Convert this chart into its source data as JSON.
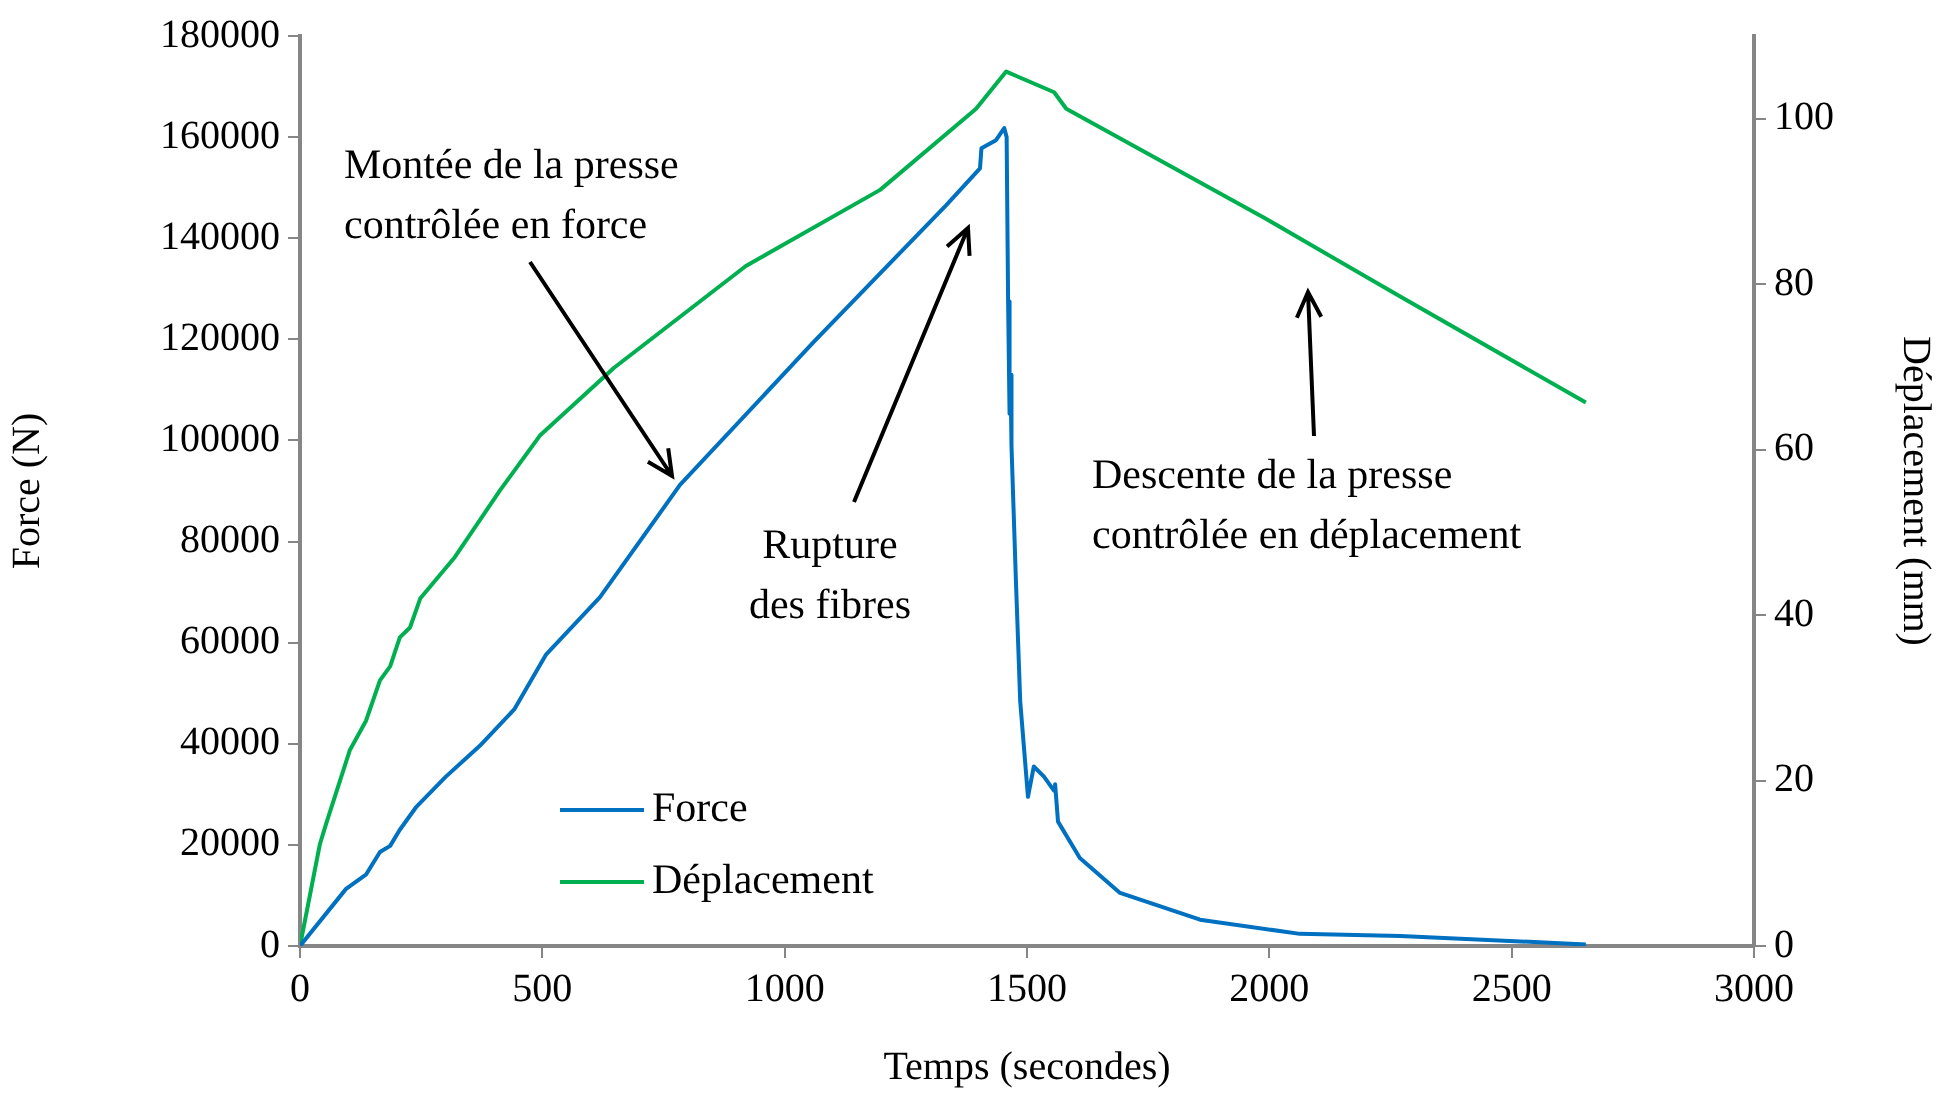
{
  "chart_data": {
    "type": "line",
    "xlabel": "Temps (secondes)",
    "ylabel": "Force (N)",
    "y2label": "Déplacement (mm)",
    "xlim": [
      0,
      3000
    ],
    "xticks": [
      0,
      500,
      1000,
      1500,
      2000,
      2500,
      3000
    ],
    "ylim": [
      0,
      180000
    ],
    "yticks": [
      0,
      20000,
      40000,
      60000,
      80000,
      100000,
      120000,
      140000,
      160000,
      180000
    ],
    "y2lim": [
      0,
      110
    ],
    "y2ticks": [
      0,
      20,
      40,
      60,
      80,
      100
    ],
    "grid": false,
    "legend": "bottom left",
    "marker": "none",
    "line_style": "solid",
    "series": [
      {
        "name": "Force",
        "color": "#0070c0",
        "x": [
          0,
          95,
          136,
          165,
          186,
          206,
          239,
          301,
          371,
          442,
          508,
          619,
          784,
          1060,
          1333,
          1403,
          1406,
          1436,
          1453,
          1458,
          1461,
          1464,
          1466,
          1468,
          1477,
          1486,
          1502,
          1514,
          1535,
          1556,
          1558,
          1564,
          1609,
          1692,
          1857,
          2063,
          2270,
          2653
        ],
        "values": [
          0,
          11300,
          14100,
          18600,
          19800,
          23000,
          27400,
          33500,
          39600,
          46800,
          57700,
          69000,
          91200,
          119500,
          146500,
          153800,
          157800,
          159400,
          161800,
          160000,
          127500,
          105300,
          113000,
          98900,
          72600,
          48400,
          29500,
          35500,
          33500,
          30700,
          32000,
          24600,
          17400,
          10500,
          5200,
          2400,
          2000,
          300
        ]
      },
      {
        "name": "Déplacement",
        "color": "#00b050",
        "axis": "y2",
        "x": [
          0,
          41,
          54,
          103,
          136,
          165,
          186,
          206,
          227,
          248,
          318,
          413,
          495,
          648,
          920,
          1197,
          1395,
          1457,
          1556,
          1581,
          1993,
          2270,
          2653
        ],
        "values": [
          0,
          12.3,
          14.8,
          23.7,
          27.2,
          32.1,
          33.8,
          37.3,
          38.5,
          42,
          46.9,
          55.1,
          61.7,
          69.9,
          82.2,
          91.4,
          101.2,
          105.7,
          103.2,
          101.2,
          87.9,
          78.5,
          65.7
        ]
      }
    ],
    "annotations": [
      "Montée de la presse\ncontrôlée en force",
      "Rupture\ndes fibres",
      "Descente de la presse\ncontrôlée en déplacement"
    ]
  }
}
